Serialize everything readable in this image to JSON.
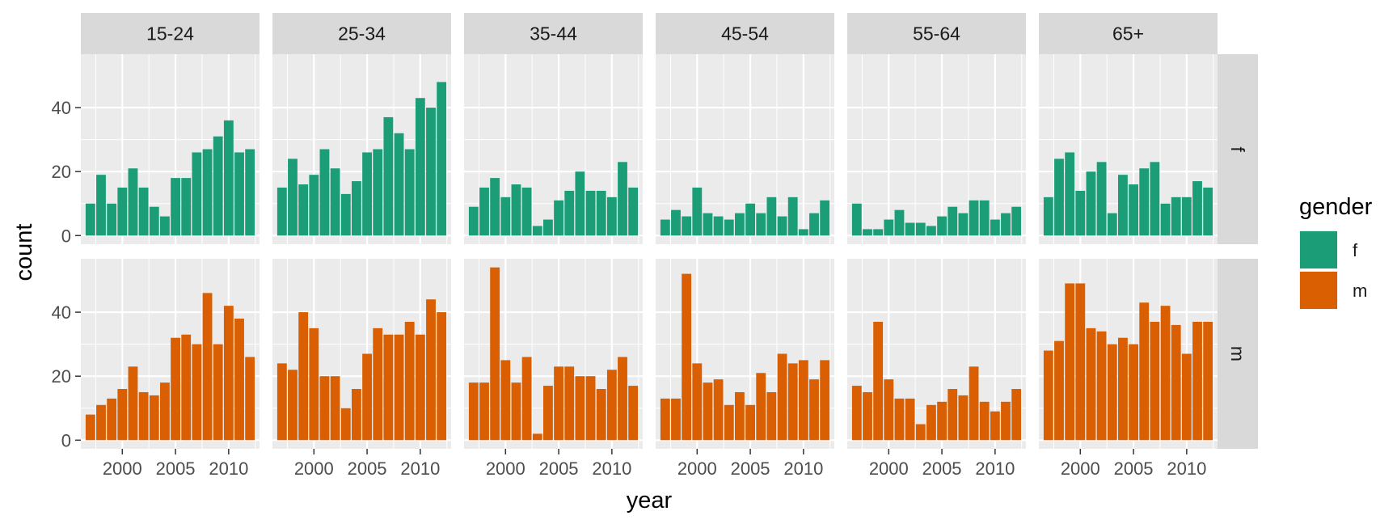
{
  "chart_data": {
    "type": "bar",
    "facet_columns": [
      "15-24",
      "25-34",
      "35-44",
      "45-54",
      "55-64",
      "65+"
    ],
    "facet_rows": [
      "f",
      "m"
    ],
    "years": [
      1997,
      1998,
      1999,
      2000,
      2001,
      2002,
      2003,
      2004,
      2005,
      2006,
      2007,
      2008,
      2009,
      2010,
      2011,
      2012
    ],
    "x_ticks": [
      2000,
      2005,
      2010
    ],
    "x_tick_labels": [
      "2000",
      "2005",
      "2010"
    ],
    "y_ticks": [
      0,
      20,
      40
    ],
    "y_tick_labels": [
      "0",
      "20",
      "40"
    ],
    "xlim": [
      1996.1,
      2012.9
    ],
    "ylim": [
      -2.7,
      56.7
    ],
    "xlabel": "year",
    "ylabel": "count",
    "grid": true,
    "legend": {
      "title": "gender",
      "position": "right",
      "entries": [
        {
          "label": "f",
          "color": "#1B9E77"
        },
        {
          "label": "m",
          "color": "#D95F02"
        }
      ]
    },
    "series": [
      {
        "name": "f",
        "color": "#1B9E77",
        "panels": [
          [
            10,
            19,
            10,
            15,
            21,
            15,
            9,
            6,
            18,
            18,
            26,
            27,
            31,
            36,
            26,
            27
          ],
          [
            15,
            24,
            16,
            19,
            27,
            21,
            13,
            17,
            26,
            27,
            37,
            32,
            27,
            43,
            40,
            48
          ],
          [
            9,
            15,
            18,
            12,
            16,
            15,
            3,
            5,
            11,
            14,
            20,
            14,
            14,
            12,
            23,
            15
          ],
          [
            5,
            8,
            6,
            15,
            7,
            6,
            5,
            7,
            10,
            7,
            12,
            6,
            12,
            2,
            7,
            11
          ],
          [
            10,
            2,
            2,
            5,
            8,
            4,
            4,
            3,
            6,
            9,
            7,
            11,
            11,
            5,
            7,
            9
          ],
          [
            12,
            24,
            26,
            14,
            20,
            23,
            7,
            19,
            16,
            21,
            23,
            10,
            12,
            12,
            17,
            15
          ]
        ]
      },
      {
        "name": "m",
        "color": "#D95F02",
        "panels": [
          [
            8,
            11,
            13,
            16,
            23,
            15,
            14,
            18,
            32,
            33,
            30,
            46,
            30,
            42,
            38,
            26
          ],
          [
            24,
            22,
            40,
            35,
            20,
            20,
            10,
            16,
            27,
            35,
            33,
            33,
            37,
            33,
            44,
            40
          ],
          [
            18,
            18,
            54,
            25,
            18,
            26,
            2,
            17,
            23,
            23,
            20,
            20,
            16,
            22,
            26,
            17
          ],
          [
            13,
            13,
            52,
            24,
            18,
            19,
            11,
            15,
            11,
            21,
            15,
            27,
            24,
            25,
            19,
            25
          ],
          [
            17,
            15,
            37,
            19,
            13,
            13,
            5,
            11,
            12,
            16,
            14,
            23,
            12,
            9,
            12,
            16
          ],
          [
            28,
            31,
            49,
            49,
            35,
            34,
            30,
            32,
            30,
            43,
            37,
            42,
            36,
            27,
            37,
            37
          ]
        ]
      }
    ]
  },
  "colors": {
    "panel_background": "#EBEBEB",
    "strip_background": "#D9D9D9",
    "grid_major": "#FFFFFF"
  }
}
